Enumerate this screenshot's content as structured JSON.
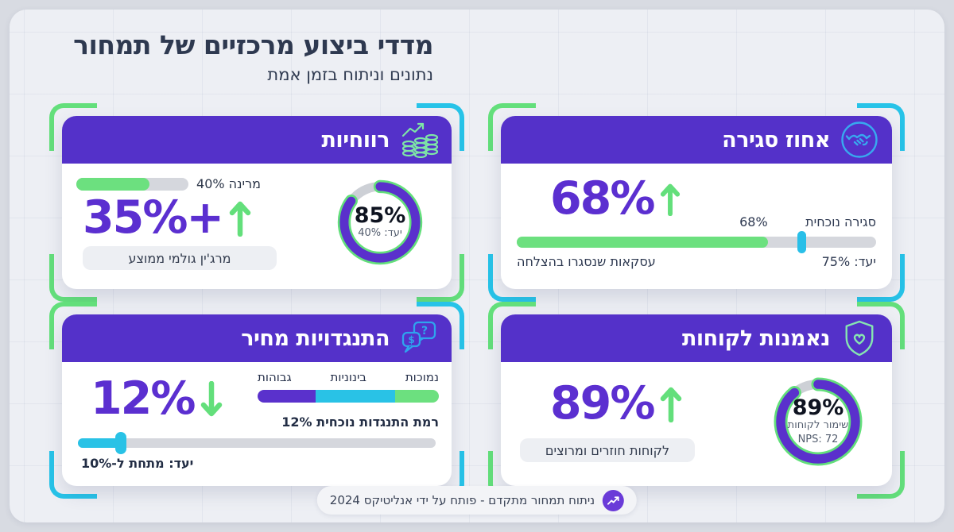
{
  "page": {
    "title": "מדדי ביצוע מרכזיים של תמחור",
    "subtitle": "נתונים וניתוח בזמן אמת",
    "footer_text": "ניתוח תמחור מתקדם - פותח על ידי אנליטיקס 2024"
  },
  "colors": {
    "header_purple": "#5431c9",
    "accent_purple": "#5b2fd0",
    "accent_green": "#6ce07f",
    "accent_cyan": "#29c2e6",
    "bracket_green": "#63df7b",
    "bracket_cyan": "#27c3e8",
    "track_gray": "#d5d7dd",
    "panel_bg": "#edeff4"
  },
  "cards": {
    "profitability": {
      "title": "רווחיות",
      "icon": "coins-growth-icon",
      "mini_bar_label": "מרינה 40%",
      "mini_bar_fill_pct": 65,
      "big_value": "35%+",
      "trend": "up",
      "pill": "מרג'ין גולמי ממוצע",
      "donut": {
        "value": "85%",
        "target": "יעד: 40%",
        "pct": 85
      }
    },
    "closing": {
      "title": "אחוז סגירה",
      "icon": "handshake-icon",
      "big_value": "68%",
      "trend": "up",
      "current_label": "סגירה נוכחית",
      "current_value": "68%",
      "bar_fill_pct": 70,
      "marker_left_pct": 78,
      "target_label": "יעד: 75%",
      "caption": "עסקאות שנסגרו בהצלחה"
    },
    "objections": {
      "title": "התנגדויות מחיר",
      "icon": "price-question-chat-icon",
      "big_value": "12%",
      "trend": "down",
      "segments": [
        {
          "label": "נמוכות",
          "color": "green",
          "pct": 24
        },
        {
          "label": "בינוניות",
          "color": "cyan",
          "pct": 44
        },
        {
          "label": "גבוהות",
          "color": "purple",
          "pct": 32
        }
      ],
      "current_label": "רמת התנגדות נוכחית 12%",
      "slider_fill_pct": 12,
      "target_label": "יעד: מתחת ל-10%"
    },
    "loyalty": {
      "title": "נאמנות לקוחות",
      "icon": "shield-heart-icon",
      "big_value": "89%",
      "trend": "up",
      "pill": "לקוחות חוזרים ומרוצים",
      "donut": {
        "value": "89%",
        "label": "שימור לקוחות",
        "nps": "NPS: 72",
        "pct": 89
      }
    }
  },
  "chart_data": [
    {
      "widget": "profitability",
      "type": "bar",
      "title": "רווחיות",
      "big_value": "+35%",
      "trend": "up",
      "bar_label": "מרינה 40%",
      "bar_fill_pct": 65,
      "donut_value_pct": 85,
      "donut_target_pct": 40,
      "caption": "מרג'ין גולמי ממוצע"
    },
    {
      "widget": "closing_rate",
      "type": "bar",
      "title": "אחוז סגירה",
      "value_pct": 68,
      "target_pct": 75,
      "trend": "up",
      "current_label": "סגירה נוכחית",
      "caption": "עסקאות שנסגרו בהצלחה"
    },
    {
      "widget": "price_objections",
      "type": "bar",
      "title": "התנגדויות מחיר",
      "value_pct": 12,
      "target": "מתחת ל-10%",
      "trend": "down",
      "categories": [
        "נמוכות",
        "בינוניות",
        "גבוהות"
      ],
      "values": [
        24,
        44,
        32
      ],
      "current_label": "רמת התנגדות נוכחית 12%"
    },
    {
      "widget": "customer_loyalty",
      "type": "pie",
      "title": "נאמנות לקוחות",
      "value_pct": 89,
      "trend": "up",
      "retention_label": "שימור לקוחות",
      "nps": 72,
      "caption": "לקוחות חוזרים ומרוצים"
    }
  ]
}
